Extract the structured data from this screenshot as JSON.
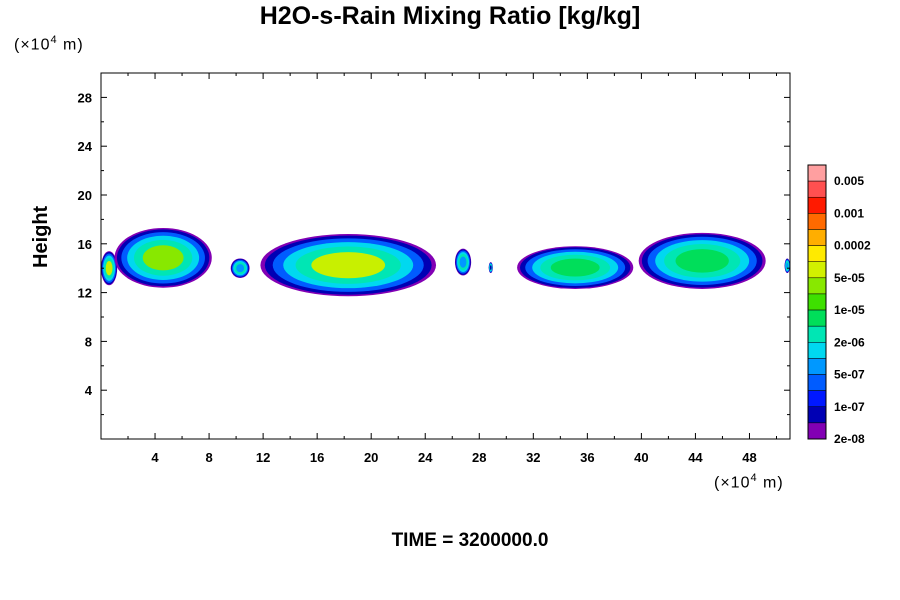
{
  "chart_data": {
    "type": "heatmap",
    "title": "H2O-s-Rain Mixing Ratio [kg/kg]",
    "ylabel": "Height",
    "xlabel": "",
    "x_unit": "(×10",
    "x_unit_exp": "4",
    "x_unit_tail": " m)",
    "y_unit": "(×10",
    "y_unit_exp": "4",
    "y_unit_tail": " m)",
    "time_label": "TIME = 3200000.0",
    "xlim": [
      0,
      51
    ],
    "ylim": [
      0,
      30
    ],
    "xticks": [
      4,
      8,
      12,
      16,
      20,
      24,
      28,
      32,
      36,
      40,
      44,
      48
    ],
    "yticks": [
      4,
      8,
      12,
      16,
      20,
      24,
      28
    ],
    "colorbar": {
      "labels": [
        "0.005",
        "0.001",
        "0.0002",
        "5e-05",
        "1e-05",
        "2e-06",
        "5e-07",
        "1e-07",
        "2e-08"
      ],
      "colors": [
        "#ff9fa0",
        "#ff5050",
        "#ff1a00",
        "#ff6a00",
        "#ffae00",
        "#ffea00",
        "#d2f000",
        "#88e800",
        "#3ee000",
        "#00de5a",
        "#00e6b4",
        "#00d8f0",
        "#0098ff",
        "#005cff",
        "#0018ff",
        "#0000b4",
        "#8200b4"
      ]
    },
    "clouds": [
      {
        "x0": 0,
        "x1": 1.2,
        "ybot": 12.6,
        "ytop": 15.4,
        "core": "#c8f000"
      },
      {
        "x0": 1.0,
        "x1": 8.2,
        "ybot": 12.4,
        "ytop": 17.3,
        "core": "#88e800"
      },
      {
        "x0": 9.6,
        "x1": 11.0,
        "ybot": 13.2,
        "ytop": 14.8,
        "core": "#0098ff"
      },
      {
        "x0": 11.8,
        "x1": 24.8,
        "ybot": 11.7,
        "ytop": 16.8,
        "core": "#c8f000"
      },
      {
        "x0": 26.2,
        "x1": 27.4,
        "ybot": 13.4,
        "ytop": 15.6,
        "core": "#0098ff"
      },
      {
        "x0": 28.7,
        "x1": 29.0,
        "ybot": 13.6,
        "ytop": 14.5,
        "core": "#0000b4"
      },
      {
        "x0": 30.8,
        "x1": 39.4,
        "ybot": 12.3,
        "ytop": 15.8,
        "core": "#00de5a"
      },
      {
        "x0": 39.8,
        "x1": 49.2,
        "ybot": 12.3,
        "ytop": 16.9,
        "core": "#00de5a"
      },
      {
        "x0": 50.6,
        "x1": 51.0,
        "ybot": 13.6,
        "ytop": 14.8,
        "core": "#0098ff"
      }
    ]
  }
}
